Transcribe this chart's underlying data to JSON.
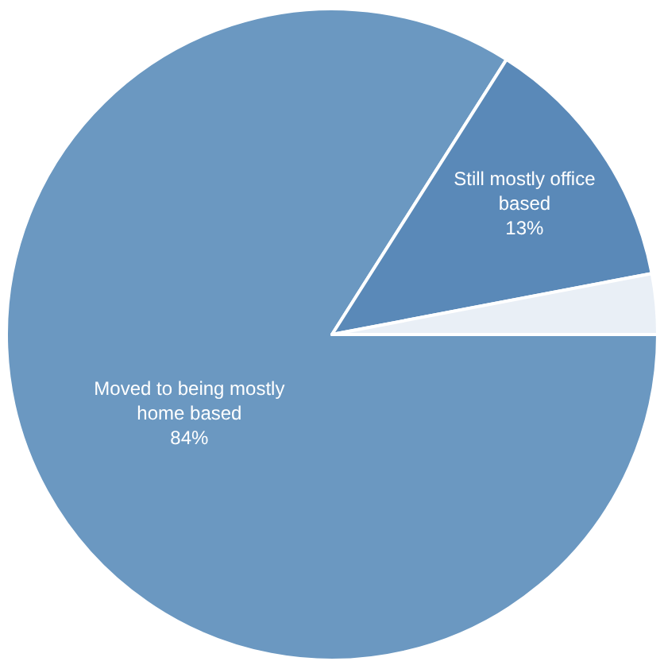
{
  "chart_data": {
    "type": "pie",
    "categories": [
      "Moved to being mostly home based",
      "Still mostly office based",
      null
    ],
    "values": [
      84,
      13,
      3
    ],
    "value_labels": [
      "84%",
      "13%",
      null
    ],
    "colors": [
      "#6b98c1",
      "#5a89b8",
      "#e9eff6"
    ]
  }
}
